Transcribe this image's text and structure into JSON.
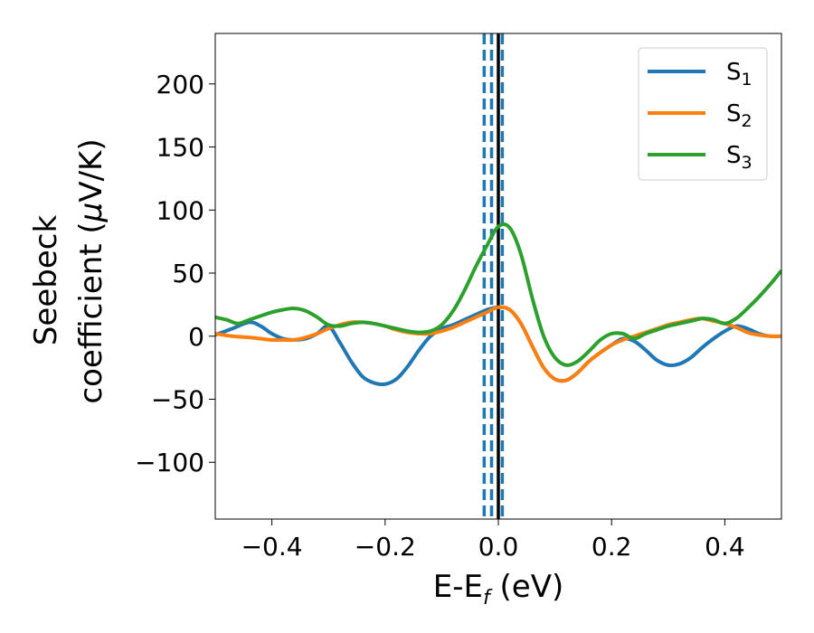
{
  "chart_data": {
    "type": "line",
    "title": "",
    "xlabel": {
      "main": "E-E",
      "sub": "f",
      "suffix": " (eV)"
    },
    "ylabel": {
      "line1": "Seebeck",
      "line2_text": "coefficient  (",
      "line2_mu": "μ",
      "line2_suffix": "V/K)"
    },
    "xlim": [
      -0.5,
      0.5
    ],
    "ylim": [
      -145,
      240
    ],
    "xticks": [
      -0.4,
      -0.2,
      0.0,
      0.2,
      0.4
    ],
    "xtick_labels": [
      "−0.4",
      "−0.2",
      "0.0",
      "0.2",
      "0.4"
    ],
    "yticks": [
      -100,
      -50,
      0,
      50,
      100,
      150,
      200
    ],
    "ytick_labels": [
      "−100",
      "−50",
      "0",
      "50",
      "100",
      "150",
      "200"
    ],
    "grid": false,
    "legend_position": "top-right",
    "vlines": {
      "solid": {
        "x": 0.0,
        "color": "#000000"
      },
      "dashed": {
        "x": [
          -0.025,
          -0.012,
          0.007
        ],
        "color": "#1f77b4"
      }
    },
    "series": [
      {
        "name": "S",
        "sub": "1",
        "color": "#1f77b4",
        "points": [
          [
            -0.5,
            1
          ],
          [
            -0.47,
            6
          ],
          [
            -0.44,
            11
          ],
          [
            -0.42,
            8
          ],
          [
            -0.4,
            2
          ],
          [
            -0.38,
            -2
          ],
          [
            -0.36,
            -3
          ],
          [
            -0.34,
            -2
          ],
          [
            -0.32,
            2
          ],
          [
            -0.3,
            8
          ],
          [
            -0.28,
            -5
          ],
          [
            -0.26,
            -20
          ],
          [
            -0.24,
            -32
          ],
          [
            -0.22,
            -37
          ],
          [
            -0.2,
            -38
          ],
          [
            -0.18,
            -34
          ],
          [
            -0.16,
            -24
          ],
          [
            -0.14,
            -11
          ],
          [
            -0.12,
            0
          ],
          [
            -0.1,
            6
          ],
          [
            -0.08,
            9
          ],
          [
            -0.06,
            13
          ],
          [
            -0.04,
            17
          ],
          [
            -0.02,
            21
          ],
          [
            0,
            23
          ],
          [
            0.02,
            21
          ],
          [
            0.04,
            10
          ],
          [
            0.06,
            -8
          ],
          [
            0.08,
            -25
          ],
          [
            0.1,
            -34
          ],
          [
            0.12,
            -35
          ],
          [
            0.14,
            -29
          ],
          [
            0.16,
            -20
          ],
          [
            0.18,
            -13
          ],
          [
            0.2,
            -7
          ],
          [
            0.22,
            -2
          ],
          [
            0.24,
            -4
          ],
          [
            0.26,
            -11
          ],
          [
            0.28,
            -19
          ],
          [
            0.3,
            -23
          ],
          [
            0.32,
            -22
          ],
          [
            0.34,
            -17
          ],
          [
            0.36,
            -9
          ],
          [
            0.38,
            -2
          ],
          [
            0.4,
            4
          ],
          [
            0.42,
            8
          ],
          [
            0.44,
            6
          ],
          [
            0.46,
            2
          ],
          [
            0.48,
            0
          ],
          [
            0.5,
            0
          ]
        ]
      },
      {
        "name": "S",
        "sub": "2",
        "color": "#ff7f0e",
        "points": [
          [
            -0.5,
            2
          ],
          [
            -0.47,
            0
          ],
          [
            -0.44,
            -1
          ],
          [
            -0.42,
            -2
          ],
          [
            -0.4,
            -3
          ],
          [
            -0.38,
            -3
          ],
          [
            -0.36,
            -3
          ],
          [
            -0.34,
            -1
          ],
          [
            -0.32,
            2
          ],
          [
            -0.3,
            6
          ],
          [
            -0.28,
            9
          ],
          [
            -0.26,
            11
          ],
          [
            -0.24,
            11
          ],
          [
            -0.22,
            10
          ],
          [
            -0.2,
            8
          ],
          [
            -0.18,
            5
          ],
          [
            -0.16,
            3
          ],
          [
            -0.14,
            2
          ],
          [
            -0.12,
            2
          ],
          [
            -0.1,
            4
          ],
          [
            -0.08,
            7
          ],
          [
            -0.06,
            11
          ],
          [
            -0.04,
            15
          ],
          [
            -0.02,
            19
          ],
          [
            0,
            23
          ],
          [
            0.02,
            21
          ],
          [
            0.04,
            10
          ],
          [
            0.06,
            -8
          ],
          [
            0.08,
            -25
          ],
          [
            0.1,
            -34
          ],
          [
            0.12,
            -35
          ],
          [
            0.14,
            -29
          ],
          [
            0.16,
            -20
          ],
          [
            0.18,
            -13
          ],
          [
            0.2,
            -7
          ],
          [
            0.22,
            -3
          ],
          [
            0.24,
            0
          ],
          [
            0.26,
            3
          ],
          [
            0.28,
            6
          ],
          [
            0.3,
            9
          ],
          [
            0.32,
            11
          ],
          [
            0.34,
            13
          ],
          [
            0.36,
            14
          ],
          [
            0.38,
            12
          ],
          [
            0.4,
            10
          ],
          [
            0.42,
            7
          ],
          [
            0.44,
            3
          ],
          [
            0.46,
            1
          ],
          [
            0.48,
            0
          ],
          [
            0.5,
            0
          ]
        ]
      },
      {
        "name": "S",
        "sub": "3",
        "color": "#2ca02c",
        "points": [
          [
            -0.5,
            15
          ],
          [
            -0.48,
            13
          ],
          [
            -0.46,
            10
          ],
          [
            -0.44,
            13
          ],
          [
            -0.42,
            16
          ],
          [
            -0.4,
            19
          ],
          [
            -0.38,
            21
          ],
          [
            -0.36,
            22
          ],
          [
            -0.34,
            20
          ],
          [
            -0.32,
            15
          ],
          [
            -0.3,
            9
          ],
          [
            -0.28,
            8
          ],
          [
            -0.26,
            10
          ],
          [
            -0.24,
            11
          ],
          [
            -0.22,
            10
          ],
          [
            -0.2,
            8
          ],
          [
            -0.18,
            6
          ],
          [
            -0.16,
            4
          ],
          [
            -0.14,
            3
          ],
          [
            -0.12,
            4
          ],
          [
            -0.1,
            9
          ],
          [
            -0.08,
            20
          ],
          [
            -0.06,
            36
          ],
          [
            -0.04,
            55
          ],
          [
            -0.02,
            72
          ],
          [
            0,
            87
          ],
          [
            0.02,
            86
          ],
          [
            0.04,
            65
          ],
          [
            0.06,
            30
          ],
          [
            0.08,
            0
          ],
          [
            0.1,
            -17
          ],
          [
            0.12,
            -23
          ],
          [
            0.14,
            -20
          ],
          [
            0.16,
            -12
          ],
          [
            0.18,
            -3
          ],
          [
            0.2,
            2
          ],
          [
            0.22,
            2
          ],
          [
            0.24,
            -2
          ],
          [
            0.26,
            2
          ],
          [
            0.28,
            5
          ],
          [
            0.3,
            8
          ],
          [
            0.32,
            10
          ],
          [
            0.34,
            12
          ],
          [
            0.36,
            14
          ],
          [
            0.38,
            13
          ],
          [
            0.4,
            10
          ],
          [
            0.42,
            14
          ],
          [
            0.44,
            22
          ],
          [
            0.46,
            31
          ],
          [
            0.48,
            41
          ],
          [
            0.5,
            52
          ]
        ]
      }
    ]
  }
}
